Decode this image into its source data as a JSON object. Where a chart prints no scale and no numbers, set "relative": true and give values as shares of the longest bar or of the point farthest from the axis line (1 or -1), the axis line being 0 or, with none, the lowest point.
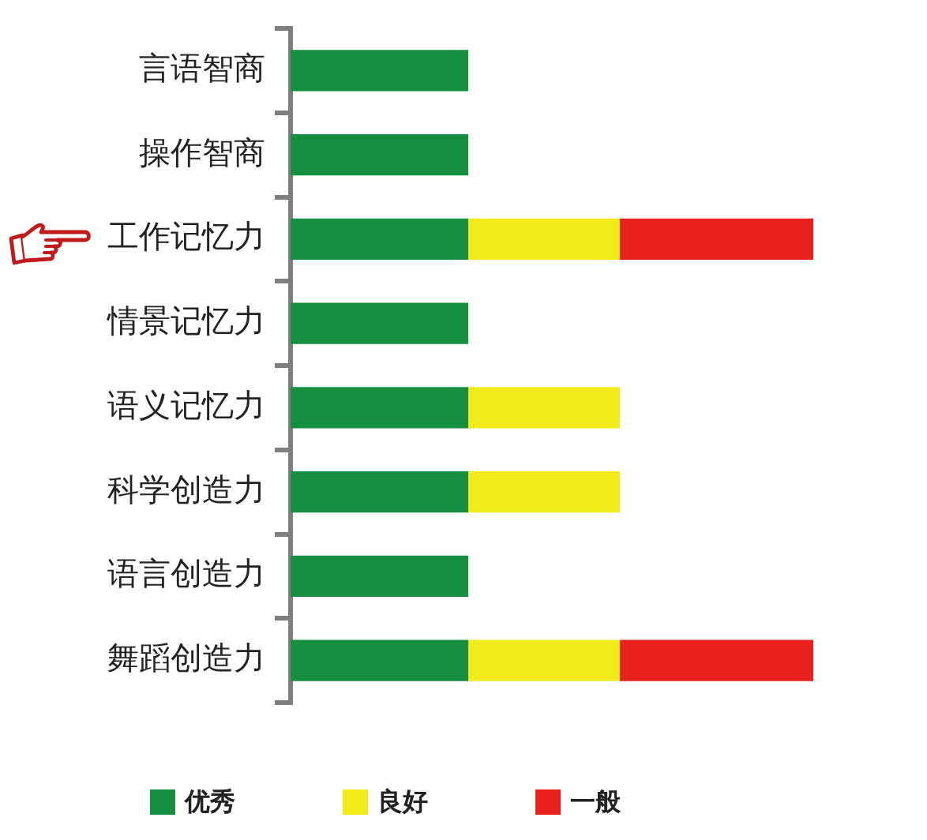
{
  "chart_data": {
    "type": "bar",
    "orientation": "horizontal",
    "stacked": true,
    "relative": true,
    "categories": [
      "言语智商",
      "操作智商",
      "工作记忆力",
      "情景记忆力",
      "语义记忆力",
      "科学创造力",
      "语言创造力",
      "舞蹈创造力"
    ],
    "series": [
      {
        "name": "优秀",
        "color": "#178f40",
        "values": [
          0.34,
          0.34,
          0.34,
          0.34,
          0.34,
          0.34,
          0.34,
          0.34
        ]
      },
      {
        "name": "良好",
        "color": "#f3ea1b",
        "values": [
          null,
          null,
          0.29,
          null,
          0.29,
          0.29,
          null,
          0.29
        ]
      },
      {
        "name": "一般",
        "color": "#e8211f",
        "values": [
          null,
          null,
          0.37,
          null,
          null,
          null,
          null,
          0.37
        ]
      }
    ],
    "legend": "bottom"
  }
}
